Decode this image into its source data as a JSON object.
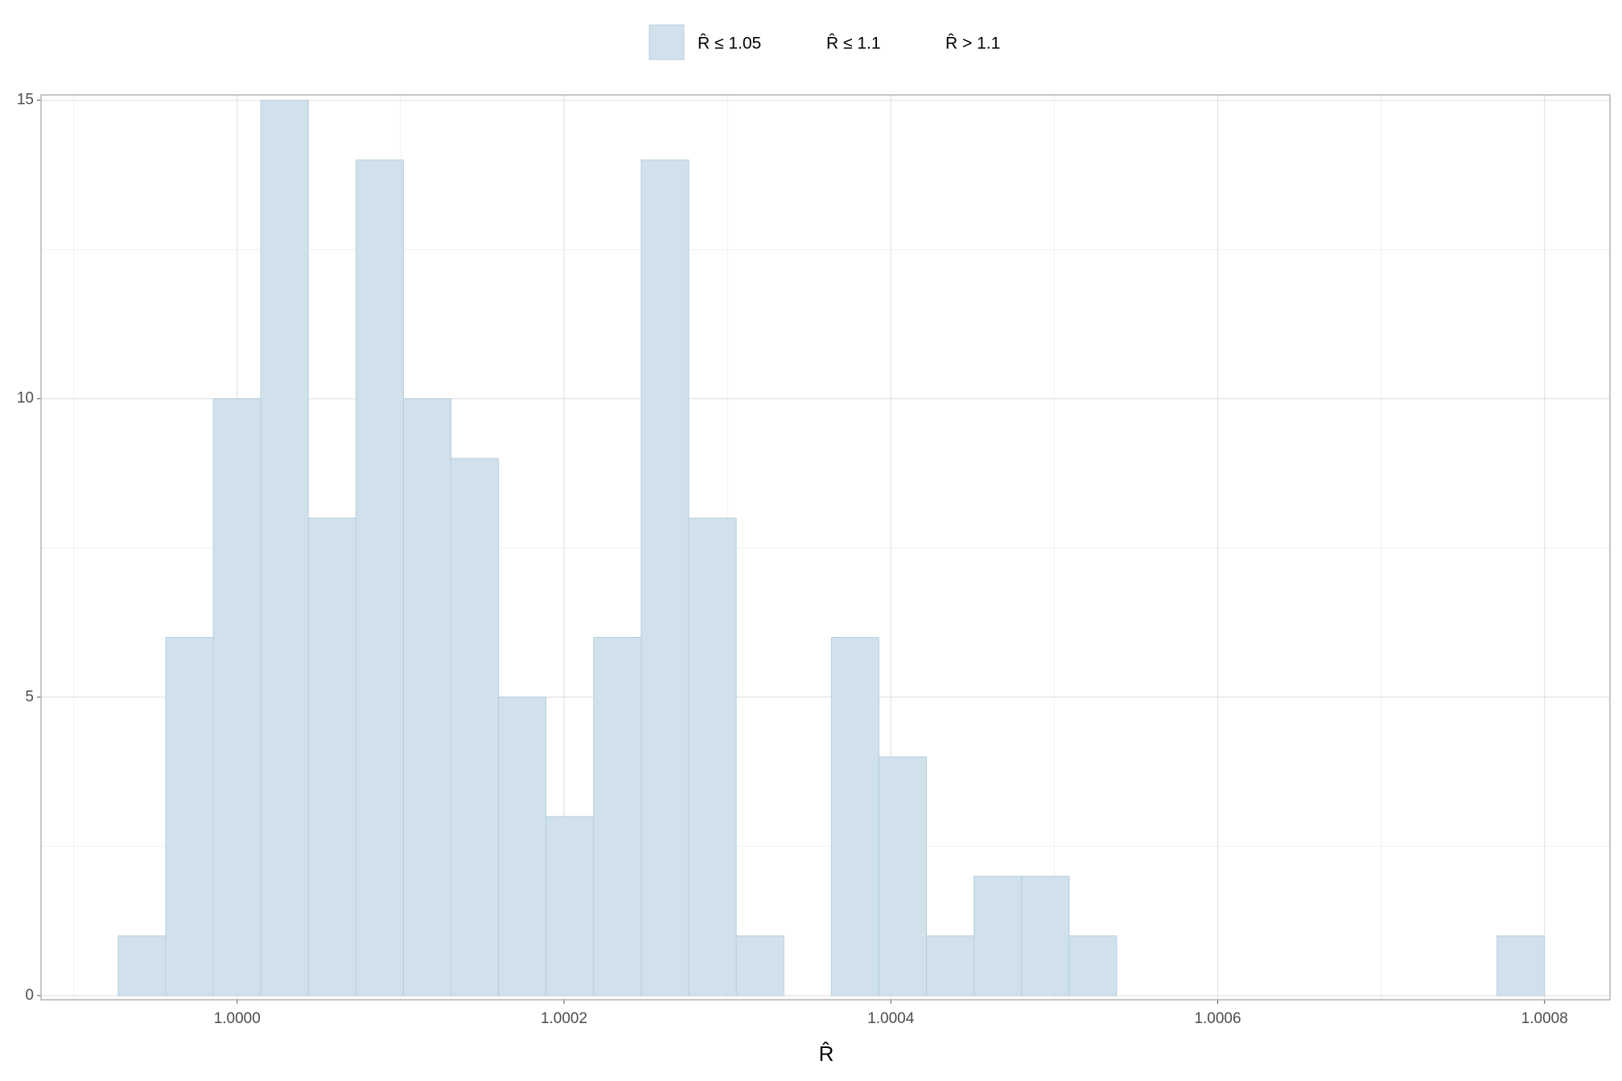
{
  "chart_data": {
    "type": "histogram",
    "xlabel": "R̂",
    "bins": [
      0.9999272,
      0.99995629,
      0.99998539,
      1.00001448,
      1.00004357,
      1.00007267,
      1.00010176,
      1.00013085,
      1.00015995,
      1.00018904,
      1.00021813,
      1.00024723,
      1.00027632,
      1.00030541,
      1.00033451,
      1.0003636,
      1.00039269,
      1.00042179,
      1.00045088,
      1.00047997,
      1.00050907,
      1.00053816,
      1.00056725,
      1.00059635,
      1.00062544,
      1.00065453,
      1.00068363,
      1.00071272,
      1.00074181,
      1.00077091,
      1.0008
    ],
    "series": [
      {
        "name": "R̂ ≤ 1.05",
        "color": "#d1e1ec",
        "values": [
          1,
          6,
          10,
          15,
          8,
          14,
          10,
          9,
          5,
          3,
          6,
          14,
          8,
          1,
          0,
          6,
          4,
          1,
          2,
          2,
          1,
          0,
          0,
          0,
          0,
          0,
          0,
          0,
          0,
          1
        ]
      }
    ],
    "legend_extra": [
      "R̂ ≤ 1.1",
      "R̂ > 1.1"
    ],
    "xlim": [
      0.99988,
      1.00084
    ],
    "ylim": [
      -0.07,
      15.09
    ],
    "xticks": [
      {
        "value": 1.0,
        "label": "1.0000"
      },
      {
        "value": 1.0002,
        "label": "1.0002"
      },
      {
        "value": 1.0004,
        "label": "1.0004"
      },
      {
        "value": 1.0006,
        "label": "1.0006"
      },
      {
        "value": 1.0008,
        "label": "1.0008"
      }
    ],
    "xminor": [
      0.9999,
      1.0001,
      1.0003,
      1.0005,
      1.0007
    ],
    "yticks": [
      0,
      5,
      10,
      15
    ],
    "yminor": [
      2.5,
      7.5,
      12.5
    ],
    "grid": true
  }
}
